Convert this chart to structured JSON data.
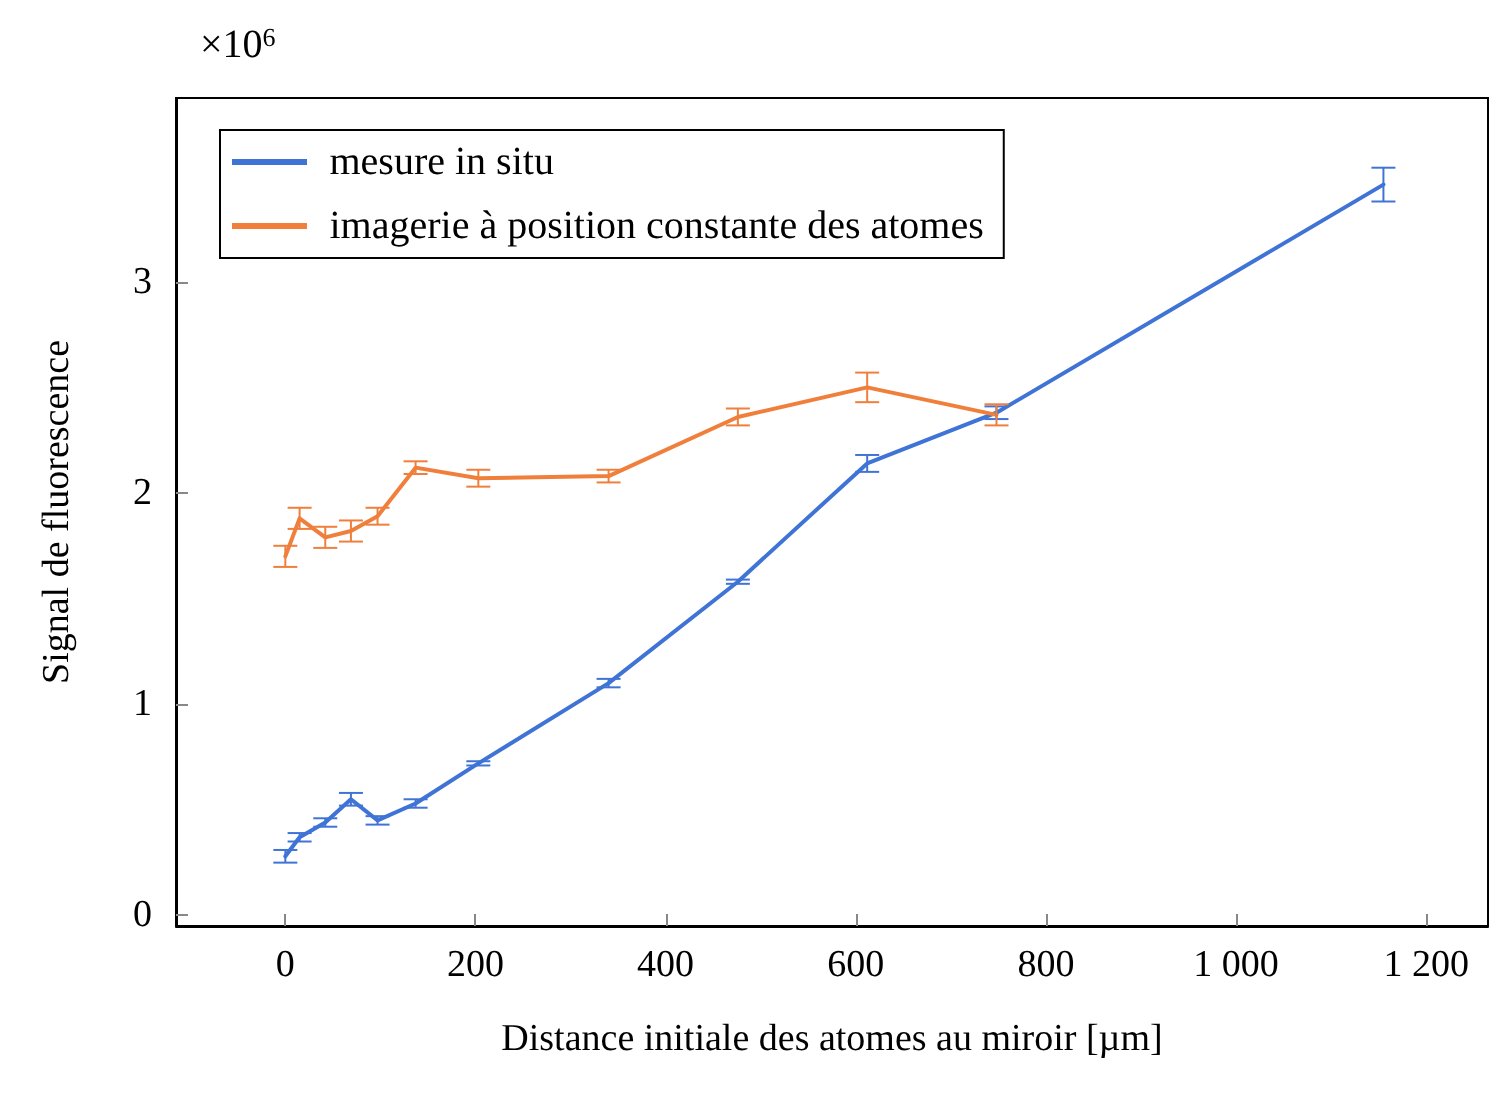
{
  "chart_data": {
    "type": "line",
    "xlabel": "Distance initiale des atomes au miroir [µm]",
    "ylabel": "Signal de fluorescence",
    "annotations": [
      "×10$^{6}$"
    ],
    "xlim": [
      -115,
      1265
    ],
    "xticks": [
      0,
      200,
      400,
      600,
      800,
      {
        "value": 1000,
        "label": "1 000"
      },
      {
        "value": 1200,
        "label": "1 200"
      }
    ],
    "ylim": [
      -0.05,
      3.87
    ],
    "yticks": [
      0,
      1,
      2,
      3
    ],
    "grid": false,
    "legend": "top left",
    "marker": "none",
    "line_style": "solid",
    "series": [
      {
        "name": "mesure in situ",
        "color": "#3f74d6",
        "x": [
          0,
          15,
          42,
          69,
          97,
          137,
          203,
          340,
          476,
          612,
          748,
          1155
        ],
        "values": [
          0.28,
          0.37,
          0.44,
          0.55,
          0.45,
          0.53,
          0.72,
          1.1,
          1.58,
          2.14,
          2.38,
          3.46
        ],
        "errors": [
          0.03,
          0.02,
          0.02,
          0.03,
          0.02,
          0.02,
          0.01,
          0.02,
          0.01,
          0.04,
          0.03,
          0.08
        ]
      },
      {
        "name": "imagerie à position constante des atomes",
        "color": "#f07f3c",
        "x": [
          0,
          15,
          42,
          69,
          97,
          137,
          203,
          340,
          476,
          612,
          748
        ],
        "values": [
          1.7,
          1.88,
          1.79,
          1.82,
          1.89,
          2.12,
          2.07,
          2.08,
          2.36,
          2.5,
          2.37
        ],
        "errors": [
          0.05,
          0.05,
          0.05,
          0.05,
          0.04,
          0.03,
          0.04,
          0.03,
          0.04,
          0.07,
          0.05
        ]
      }
    ]
  }
}
